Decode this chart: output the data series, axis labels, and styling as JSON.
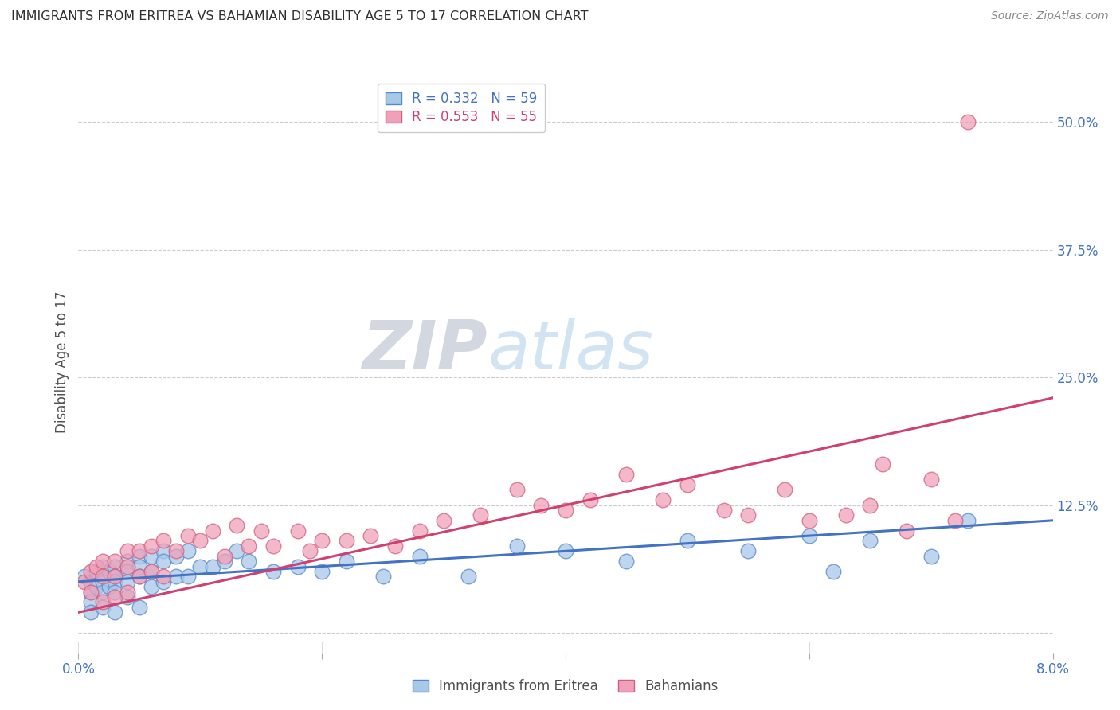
{
  "title": "IMMIGRANTS FROM ERITREA VS BAHAMIAN DISABILITY AGE 5 TO 17 CORRELATION CHART",
  "source": "Source: ZipAtlas.com",
  "ylabel": "Disability Age 5 to 17",
  "xlim": [
    0.0,
    0.08
  ],
  "ylim": [
    -0.02,
    0.55
  ],
  "yticks": [
    0.0,
    0.125,
    0.25,
    0.375,
    0.5
  ],
  "ytick_labels": [
    "",
    "12.5%",
    "25.0%",
    "37.5%",
    "50.0%"
  ],
  "xticks": [
    0.0,
    0.02,
    0.04,
    0.06,
    0.08
  ],
  "xtick_labels": [
    "0.0%",
    "",
    "",
    "",
    "8.0%"
  ],
  "legend_label1": "Immigrants from Eritrea",
  "legend_label2": "Bahamians",
  "blue_color": "#A8C8E8",
  "pink_color": "#F0A0B8",
  "blue_edge_color": "#5588CC",
  "pink_edge_color": "#D06080",
  "blue_line_color": "#4472C4",
  "pink_line_color": "#D04070",
  "title_color": "#303030",
  "axis_label_color": "#505050",
  "tick_color_blue": "#4472C4",
  "blue_scatter_x": [
    0.0005,
    0.001,
    0.001,
    0.001,
    0.001,
    0.0015,
    0.0015,
    0.002,
    0.002,
    0.002,
    0.002,
    0.002,
    0.0025,
    0.0025,
    0.003,
    0.003,
    0.003,
    0.003,
    0.003,
    0.004,
    0.004,
    0.004,
    0.004,
    0.005,
    0.005,
    0.005,
    0.005,
    0.006,
    0.006,
    0.006,
    0.007,
    0.007,
    0.007,
    0.008,
    0.008,
    0.009,
    0.009,
    0.01,
    0.011,
    0.012,
    0.013,
    0.014,
    0.016,
    0.018,
    0.02,
    0.022,
    0.025,
    0.028,
    0.032,
    0.036,
    0.04,
    0.045,
    0.05,
    0.055,
    0.06,
    0.062,
    0.065,
    0.07,
    0.073
  ],
  "blue_scatter_y": [
    0.055,
    0.05,
    0.04,
    0.03,
    0.02,
    0.06,
    0.045,
    0.065,
    0.055,
    0.05,
    0.04,
    0.025,
    0.06,
    0.045,
    0.065,
    0.055,
    0.05,
    0.04,
    0.02,
    0.07,
    0.06,
    0.05,
    0.035,
    0.075,
    0.065,
    0.055,
    0.025,
    0.075,
    0.06,
    0.045,
    0.08,
    0.07,
    0.05,
    0.075,
    0.055,
    0.08,
    0.055,
    0.065,
    0.065,
    0.07,
    0.08,
    0.07,
    0.06,
    0.065,
    0.06,
    0.07,
    0.055,
    0.075,
    0.055,
    0.085,
    0.08,
    0.07,
    0.09,
    0.08,
    0.095,
    0.06,
    0.09,
    0.075,
    0.11
  ],
  "pink_scatter_x": [
    0.0005,
    0.001,
    0.001,
    0.0015,
    0.002,
    0.002,
    0.002,
    0.003,
    0.003,
    0.003,
    0.004,
    0.004,
    0.004,
    0.005,
    0.005,
    0.006,
    0.006,
    0.007,
    0.007,
    0.008,
    0.009,
    0.01,
    0.011,
    0.012,
    0.013,
    0.014,
    0.015,
    0.016,
    0.018,
    0.019,
    0.02,
    0.022,
    0.024,
    0.026,
    0.028,
    0.03,
    0.033,
    0.036,
    0.038,
    0.04,
    0.042,
    0.045,
    0.048,
    0.05,
    0.053,
    0.055,
    0.058,
    0.06,
    0.063,
    0.065,
    0.066,
    0.068,
    0.07,
    0.072,
    0.073
  ],
  "pink_scatter_y": [
    0.05,
    0.06,
    0.04,
    0.065,
    0.07,
    0.055,
    0.03,
    0.07,
    0.055,
    0.035,
    0.08,
    0.065,
    0.04,
    0.08,
    0.055,
    0.085,
    0.06,
    0.09,
    0.055,
    0.08,
    0.095,
    0.09,
    0.1,
    0.075,
    0.105,
    0.085,
    0.1,
    0.085,
    0.1,
    0.08,
    0.09,
    0.09,
    0.095,
    0.085,
    0.1,
    0.11,
    0.115,
    0.14,
    0.125,
    0.12,
    0.13,
    0.155,
    0.13,
    0.145,
    0.12,
    0.115,
    0.14,
    0.11,
    0.115,
    0.125,
    0.165,
    0.1,
    0.15,
    0.11,
    0.5
  ],
  "blue_trend_x": [
    0.0,
    0.08
  ],
  "blue_trend_y": [
    0.05,
    0.11
  ],
  "pink_trend_x": [
    0.0,
    0.08
  ],
  "pink_trend_y": [
    0.02,
    0.23
  ]
}
